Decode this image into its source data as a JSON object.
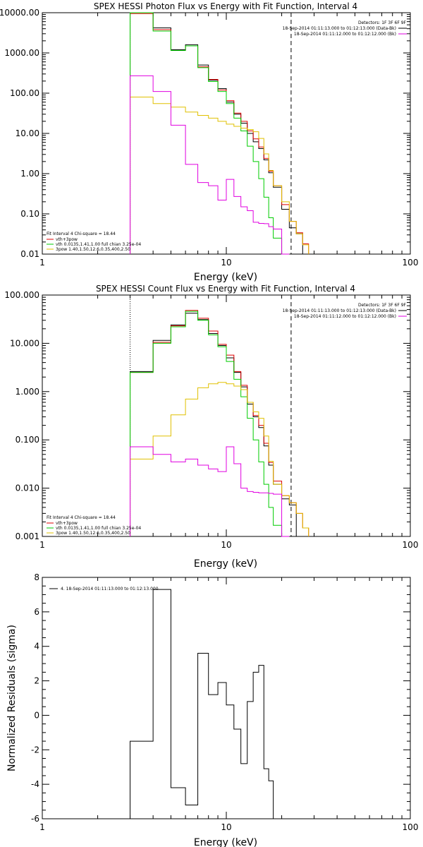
{
  "chart_data": [
    {
      "type": "line",
      "title": "SPEX HESSI Photon Flux vs Energy with Fit Function, Interval 4",
      "xlabel": "Energy (keV)",
      "ylabel": "",
      "xscale": "log",
      "yscale": "log",
      "xlim": [
        1,
        100
      ],
      "ylim": [
        0.01,
        10000
      ],
      "x_tick_labels": [
        "1",
        "10",
        "100"
      ],
      "y_tick_labels": [
        "0.01",
        "0.10",
        "1.00",
        "10.00",
        "100.00",
        "1000.00",
        "10000.00"
      ],
      "legend_top": [
        "Detectors: 1F 3F 6F 9F",
        "18-Sep-2014 01:11:13.000 to 01:12:13.000 (Data-Bk)",
        "18-Sep-2014 01:11:12.000 to 01:12:12.000 (Bk)"
      ],
      "legend_bottom": [
        "Fit Interval 4   Chi-square = 18.44",
        "vth+3pow",
        "vth 0.0135,1.41,1.00  full chian 3.25e-04",
        "3pow 1.40,1.50,12.6,0.35,400,2.50"
      ],
      "x_edges": [
        3.0,
        4.0,
        5.0,
        6.0,
        7.0,
        8.0,
        9.0,
        10.0,
        11.0,
        12.0,
        13.0,
        14.0,
        15.0,
        16.0,
        17.0,
        18.0,
        20.0,
        22.0,
        24.0,
        26.0,
        28.0
      ],
      "vline_dotted": 3.0,
      "vline_dashed": 22.5,
      "series": [
        {
          "name": "Data-Bk",
          "color": "#000000",
          "values": [
            10000,
            4200,
            1200,
            1600,
            500,
            210,
            130,
            60,
            30,
            18,
            10,
            6.2,
            4.2,
            2.2,
            1.05,
            0.46,
            0.13,
            0.045,
            0.032,
            null
          ]
        },
        {
          "name": "vth+3pow",
          "color": "#dd0000",
          "values": [
            9500,
            3800,
            1150,
            1500,
            450,
            220,
            120,
            65,
            32,
            20,
            11.5,
            7.3,
            4.6,
            2.4,
            1.15,
            0.5,
            0.17,
            0.065,
            0.034,
            0.018
          ]
        },
        {
          "name": "vth",
          "color": "#00cc00",
          "values": [
            10000,
            3500,
            1150,
            1500,
            430,
            195,
            110,
            55,
            24,
            11.5,
            4.8,
            2.0,
            0.75,
            0.26,
            0.08,
            0.025,
            0.008,
            null,
            null,
            null
          ]
        },
        {
          "name": "3pow",
          "color": "#e0c000",
          "values": [
            80,
            55,
            45,
            34,
            28,
            24,
            20,
            17,
            15,
            13.5,
            12.5,
            11,
            7.5,
            3.1,
            1.2,
            0.5,
            0.2,
            0.065,
            0.032,
            0.017
          ]
        },
        {
          "name": "Bk",
          "color": "#e000e0",
          "values": [
            270,
            110,
            16,
            1.7,
            0.6,
            0.5,
            0.22,
            0.72,
            0.27,
            0.15,
            0.12,
            0.062,
            0.058,
            0.057,
            0.048,
            0.042,
            0.005,
            null,
            null,
            null
          ]
        }
      ]
    },
    {
      "type": "line",
      "title": "SPEX HESSI Count Flux vs Energy with Fit Function, Interval 4",
      "xlabel": "Energy (keV)",
      "ylabel": "",
      "xscale": "log",
      "yscale": "log",
      "xlim": [
        1,
        100
      ],
      "ylim": [
        0.001,
        100
      ],
      "x_tick_labels": [
        "1",
        "10",
        "100"
      ],
      "y_tick_labels": [
        "0.001",
        "0.010",
        "0.100",
        "1.000",
        "10.000",
        "100.000"
      ],
      "legend_top": [
        "Detectors: 1F 3F 6F 9F",
        "18-Sep-2014 01:11:13.000 to 01:12:13.000 (Data-Bk)",
        "18-Sep-2014 01:11:12.000 to 01:12:12.000 (Bk)"
      ],
      "legend_bottom": [
        "Fit Interval 4   Chi-square = 18.44",
        "vth+3pow",
        "vth 0.0135,1.41,1.00  full chian 3.25e-04",
        "3pow 1.40,1.50,12.6,0.35,400,2.50"
      ],
      "x_edges": [
        3.0,
        4.0,
        5.0,
        6.0,
        7.0,
        8.0,
        9.0,
        10.0,
        11.0,
        12.0,
        13.0,
        14.0,
        15.0,
        16.0,
        17.0,
        18.0,
        20.0,
        22.0,
        24.0,
        26.0,
        28.0
      ],
      "vline_dotted": 3.0,
      "vline_dashed": 22.5,
      "series": [
        {
          "name": "Data-Bk",
          "color": "#000000",
          "values": [
            2.6,
            11.5,
            24,
            42,
            31,
            16,
            9,
            5,
            2.5,
            1.25,
            0.55,
            0.3,
            0.18,
            0.075,
            0.03,
            0.012,
            0.006,
            0.0045,
            null,
            null
          ]
        },
        {
          "name": "vth+3pow",
          "color": "#dd0000",
          "values": [
            2.5,
            10.5,
            23,
            48,
            33,
            18,
            9.5,
            5.7,
            2.6,
            1.35,
            0.6,
            0.32,
            0.2,
            0.085,
            0.034,
            0.014,
            0.007,
            0.005,
            0.003,
            0.0015
          ]
        },
        {
          "name": "vth",
          "color": "#00cc00",
          "values": [
            2.5,
            10,
            22,
            46,
            30,
            15,
            8.5,
            4.2,
            1.8,
            0.78,
            0.28,
            0.1,
            0.035,
            0.012,
            0.004,
            0.0017,
            0.0005,
            null,
            null,
            null
          ]
        },
        {
          "name": "3pow",
          "color": "#e0c000",
          "values": [
            0.04,
            0.12,
            0.33,
            0.7,
            1.2,
            1.45,
            1.55,
            1.45,
            1.3,
            1.1,
            0.6,
            0.38,
            0.28,
            0.12,
            0.036,
            0.012,
            0.007,
            0.005,
            0.003,
            0.0015
          ]
        },
        {
          "name": "Bk",
          "color": "#e000e0",
          "values": [
            0.072,
            0.05,
            0.035,
            0.04,
            0.03,
            0.025,
            0.022,
            0.072,
            0.032,
            0.01,
            0.0085,
            0.0082,
            0.008,
            0.008,
            0.0078,
            0.0075,
            0.0005,
            null,
            null,
            null
          ]
        }
      ]
    },
    {
      "type": "line",
      "title": "",
      "xlabel": "Energy (keV)",
      "ylabel": "Normalized Residuals (sigma)",
      "xscale": "log",
      "yscale": "linear",
      "xlim": [
        1,
        100
      ],
      "ylim": [
        -6,
        8
      ],
      "x_tick_labels": [
        "1",
        "10",
        "100"
      ],
      "y_tick_labels": [
        "-6",
        "-4",
        "-2",
        "0",
        "2",
        "4",
        "6",
        "8"
      ],
      "legend_top": [
        "4. 18-Sep-2014 01:11:13.000 to 01:12:13.000"
      ],
      "x_edges": [
        3.0,
        4.0,
        5.0,
        6.0,
        7.0,
        8.0,
        9.0,
        10.0,
        11.0,
        12.0,
        13.0,
        14.0,
        15.0,
        16.0,
        17.0,
        18.0,
        20.0,
        22.0
      ],
      "series": [
        {
          "name": "",
          "color": "#000000",
          "values": [
            -1.5,
            7.3,
            -4.2,
            -5.2,
            3.6,
            1.2,
            1.9,
            0.6,
            -0.8,
            -2.8,
            0.8,
            2.5,
            2.9,
            -3.1,
            -3.8,
            -6.2,
            null
          ]
        }
      ]
    }
  ]
}
